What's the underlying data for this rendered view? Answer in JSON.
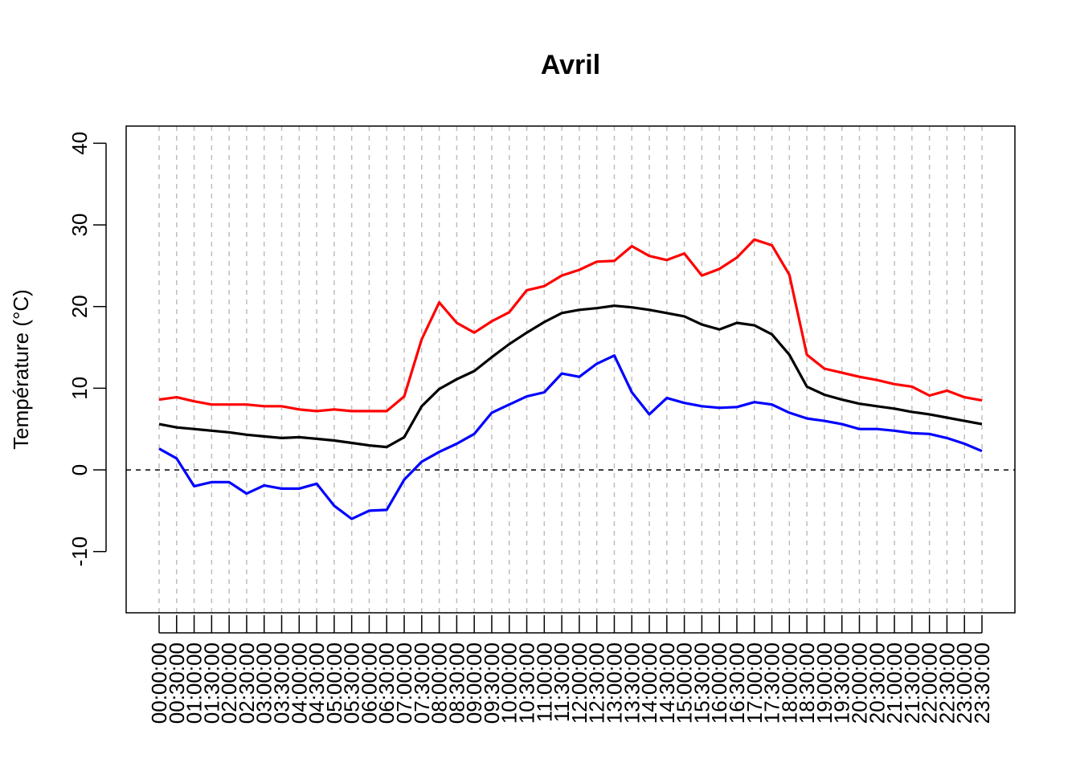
{
  "chart_data": {
    "type": "line",
    "title": "Avril",
    "xlabel": "",
    "ylabel": "Température (°C)",
    "ylim": [
      -17.5,
      42.1
    ],
    "yticks": [
      -10,
      0,
      10,
      20,
      30,
      40
    ],
    "ytick_labels": [
      "-10",
      "0",
      "10",
      "20",
      "30",
      "40"
    ],
    "x": [
      "00:00:00",
      "00:30:00",
      "01:00:00",
      "01:30:00",
      "02:00:00",
      "02:30:00",
      "03:00:00",
      "03:30:00",
      "04:00:00",
      "04:30:00",
      "05:00:00",
      "05:30:00",
      "06:00:00",
      "06:30:00",
      "07:00:00",
      "07:30:00",
      "08:00:00",
      "08:30:00",
      "09:00:00",
      "09:30:00",
      "10:00:00",
      "10:30:00",
      "11:00:00",
      "11:30:00",
      "12:00:00",
      "12:30:00",
      "13:00:00",
      "13:30:00",
      "14:00:00",
      "14:30:00",
      "15:00:00",
      "15:30:00",
      "16:00:00",
      "16:30:00",
      "17:00:00",
      "17:30:00",
      "18:00:00",
      "18:30:00",
      "19:00:00",
      "19:30:00",
      "20:00:00",
      "20:30:00",
      "21:00:00",
      "21:30:00",
      "22:00:00",
      "22:30:00",
      "23:00:00",
      "23:30:00"
    ],
    "series": [
      {
        "color": "#ff0000",
        "values": [
          8.6,
          8.9,
          8.4,
          8.0,
          8.0,
          8.0,
          7.8,
          7.8,
          7.4,
          7.2,
          7.4,
          7.2,
          7.2,
          7.2,
          9.0,
          16.0,
          20.5,
          18.0,
          16.8,
          18.2,
          19.3,
          22.0,
          22.5,
          23.8,
          24.5,
          25.5,
          25.6,
          27.4,
          26.2,
          25.7,
          26.5,
          23.8,
          24.6,
          26.0,
          28.2,
          27.5,
          23.9,
          14.1,
          12.4,
          11.9,
          11.4,
          11.0,
          10.5,
          10.2,
          9.1,
          9.7,
          8.9,
          8.5
        ]
      },
      {
        "color": "#000000",
        "values": [
          5.6,
          5.2,
          5.0,
          4.8,
          4.6,
          4.3,
          4.1,
          3.9,
          4.0,
          3.8,
          3.6,
          3.3,
          3.0,
          2.8,
          4.0,
          7.8,
          9.9,
          11.1,
          12.1,
          13.8,
          15.4,
          16.8,
          18.1,
          19.2,
          19.6,
          19.8,
          20.1,
          19.9,
          19.6,
          19.2,
          18.8,
          17.8,
          17.2,
          18.0,
          17.7,
          16.6,
          14.1,
          10.2,
          9.2,
          8.6,
          8.1,
          7.8,
          7.5,
          7.1,
          6.8,
          6.4,
          6.0,
          5.6
        ]
      },
      {
        "color": "#0000ff",
        "values": [
          2.6,
          1.4,
          -2.0,
          -1.5,
          -1.5,
          -2.9,
          -1.9,
          -2.3,
          -2.3,
          -1.7,
          -4.4,
          -6.0,
          -5.0,
          -4.9,
          -1.2,
          1.0,
          2.2,
          3.2,
          4.4,
          7.0,
          8.0,
          9.0,
          9.5,
          11.8,
          11.4,
          13.0,
          14.0,
          9.5,
          6.8,
          8.8,
          8.2,
          7.8,
          7.6,
          7.7,
          8.3,
          8.0,
          7.0,
          6.3,
          6.0,
          5.6,
          5.0,
          5.0,
          4.8,
          4.5,
          4.4,
          3.9,
          3.2,
          2.3
        ]
      }
    ],
    "reference_line": 0,
    "grid": "vertical-dashed",
    "legend": "none"
  }
}
